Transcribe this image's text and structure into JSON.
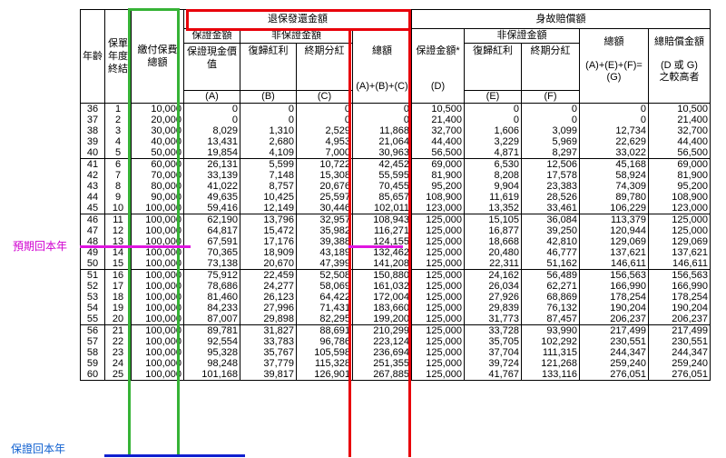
{
  "headers": {
    "age": "年齡",
    "policy_year": "保單年度終結",
    "total_premium": "繳付保費總額",
    "surrender_group": "退保發還金額",
    "death_group": "身故賠償額",
    "guaranteed_amount": "保證金額",
    "non_guaranteed": "非保證金額",
    "guaranteed_cash_value": "保證現金價值",
    "reversionary_bonus": "復歸紅利",
    "terminal_dividend": "終期分紅",
    "total": "總額",
    "death_guaranteed": "保證金額*",
    "death_reversionary": "復歸紅利",
    "death_terminal": "終期分紅",
    "death_total_formula": "(A)+(E)+(F)=",
    "death_total": "總額",
    "total_death_benefit": "總賠償金額",
    "greater_of": "(D 或 G)",
    "greater_suffix": "之較高者",
    "col_a": "(A)",
    "col_b": "(B)",
    "col_c": "(C)",
    "col_abc": "(A)+(B)+(C)",
    "col_d": "(D)",
    "col_e": "(E)",
    "col_f": "(F)",
    "col_g": "(G)"
  },
  "rows": [
    [
      "36",
      "1",
      "10,000",
      "0",
      "0",
      "0",
      "0",
      "10,500",
      "0",
      "0",
      "0",
      "10,500"
    ],
    [
      "37",
      "2",
      "20,000",
      "0",
      "0",
      "0",
      "0",
      "21,400",
      "0",
      "0",
      "0",
      "21,400"
    ],
    [
      "38",
      "3",
      "30,000",
      "8,029",
      "1,310",
      "2,529",
      "11,868",
      "32,700",
      "1,606",
      "3,099",
      "12,734",
      "32,700"
    ],
    [
      "39",
      "4",
      "40,000",
      "13,431",
      "2,680",
      "4,953",
      "21,064",
      "44,400",
      "3,229",
      "5,969",
      "22,629",
      "44,400"
    ],
    [
      "40",
      "5",
      "50,000",
      "19,854",
      "4,109",
      "7,000",
      "30,963",
      "56,500",
      "4,871",
      "8,297",
      "33,022",
      "56,500"
    ],
    [
      "41",
      "6",
      "60,000",
      "26,131",
      "5,599",
      "10,722",
      "42,452",
      "69,000",
      "6,530",
      "12,506",
      "45,168",
      "69,000"
    ],
    [
      "42",
      "7",
      "70,000",
      "33,139",
      "7,148",
      "15,308",
      "55,595",
      "81,900",
      "8,208",
      "17,578",
      "58,924",
      "81,900"
    ],
    [
      "43",
      "8",
      "80,000",
      "41,022",
      "8,757",
      "20,676",
      "70,455",
      "95,200",
      "9,904",
      "23,383",
      "74,309",
      "95,200"
    ],
    [
      "44",
      "9",
      "90,000",
      "49,635",
      "10,425",
      "25,597",
      "85,657",
      "108,900",
      "11,619",
      "28,526",
      "89,780",
      "108,900"
    ],
    [
      "45",
      "10",
      "100,000",
      "59,416",
      "12,149",
      "30,446",
      "102,011",
      "123,000",
      "13,352",
      "33,461",
      "106,229",
      "123,000"
    ],
    [
      "46",
      "11",
      "100,000",
      "62,190",
      "13,796",
      "32,957",
      "108,943",
      "125,000",
      "15,105",
      "36,084",
      "113,379",
      "125,000"
    ],
    [
      "47",
      "12",
      "100,000",
      "64,817",
      "15,472",
      "35,982",
      "116,271",
      "125,000",
      "16,877",
      "39,250",
      "120,944",
      "125,000"
    ],
    [
      "48",
      "13",
      "100,000",
      "67,591",
      "17,176",
      "39,388",
      "124,155",
      "125,000",
      "18,668",
      "42,810",
      "129,069",
      "129,069"
    ],
    [
      "49",
      "14",
      "100,000",
      "70,365",
      "18,909",
      "43,189",
      "132,462",
      "125,000",
      "20,480",
      "46,777",
      "137,621",
      "137,621"
    ],
    [
      "50",
      "15",
      "100,000",
      "73,138",
      "20,670",
      "47,399",
      "141,208",
      "125,000",
      "22,311",
      "51,162",
      "146,611",
      "146,611"
    ],
    [
      "51",
      "16",
      "100,000",
      "75,912",
      "22,459",
      "52,508",
      "150,880",
      "125,000",
      "24,162",
      "56,489",
      "156,563",
      "156,563"
    ],
    [
      "52",
      "17",
      "100,000",
      "78,686",
      "24,277",
      "58,069",
      "161,032",
      "125,000",
      "26,034",
      "62,271",
      "166,990",
      "166,990"
    ],
    [
      "53",
      "18",
      "100,000",
      "81,460",
      "26,123",
      "64,422",
      "172,004",
      "125,000",
      "27,926",
      "68,869",
      "178,254",
      "178,254"
    ],
    [
      "54",
      "19",
      "100,000",
      "84,233",
      "27,996",
      "71,431",
      "183,660",
      "125,000",
      "29,839",
      "76,132",
      "190,204",
      "190,204"
    ],
    [
      "55",
      "20",
      "100,000",
      "87,007",
      "29,898",
      "82,295",
      "199,200",
      "125,000",
      "31,773",
      "87,457",
      "206,237",
      "206,237"
    ],
    [
      "56",
      "21",
      "100,000",
      "89,781",
      "31,827",
      "88,691",
      "210,299",
      "125,000",
      "33,728",
      "93,990",
      "217,499",
      "217,499"
    ],
    [
      "57",
      "22",
      "100,000",
      "92,554",
      "33,783",
      "96,786",
      "223,124",
      "125,000",
      "35,705",
      "102,292",
      "230,551",
      "230,551"
    ],
    [
      "58",
      "23",
      "100,000",
      "95,328",
      "35,767",
      "105,598",
      "236,694",
      "125,000",
      "37,704",
      "111,315",
      "244,347",
      "244,347"
    ],
    [
      "59",
      "24",
      "100,000",
      "98,248",
      "37,779",
      "115,328",
      "251,355",
      "125,000",
      "39,724",
      "121,268",
      "259,240",
      "259,240"
    ],
    [
      "60",
      "25",
      "100,000",
      "101,168",
      "39,817",
      "126,901",
      "267,885",
      "125,000",
      "41,767",
      "133,116",
      "276,051",
      "276,051"
    ]
  ],
  "annotations": {
    "expected_breakeven": "預期回本年",
    "guaranteed_breakeven": "保證回本年"
  },
  "colors": {
    "green_box": "#36b336",
    "red_box": "#e8000a",
    "magenta_line": "#e015e0",
    "blue_line": "#1020d0",
    "label_magenta": "#d000d0",
    "label_blue": "#1060d0"
  }
}
